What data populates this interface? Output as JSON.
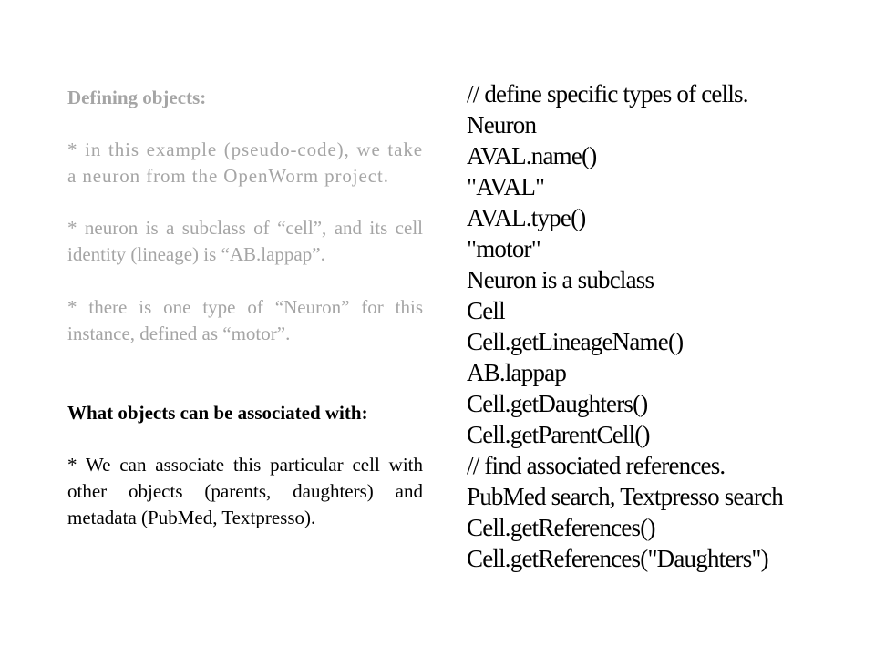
{
  "left": {
    "section1_heading": "Defining objects:",
    "bullet1": "* in this example (pseudo-code), we take a neuron from the OpenWorm project.",
    "bullet2": "* neuron is a subclass of “cell”, and its cell identity (lineage) is “AB.lappap”.",
    "bullet3": "* there is one type of “Neuron” for this instance, defined as “motor”.",
    "section2_heading": "What objects can be associated with:",
    "bullet4": "* We can associate this particular cell with other objects (parents, daughters) and metadata (PubMed, Textpresso)."
  },
  "code_lines": [
    "// define specific types of cells.",
    "Neuron",
    "AVAL.name()",
    "\"AVAL\"",
    "AVAL.type()",
    "\"motor\"",
    "Neuron is a subclass",
    "Cell",
    "Cell.getLineageName()",
    "AB.lappap",
    "Cell.getDaughters()",
    "Cell.getParentCell()",
    "// find associated references.",
    "PubMed search, Textpresso search",
    "Cell.getReferences()",
    "Cell.getReferences(\"Daughters\")"
  ],
  "colors": {
    "muted_text": "#a5a5a5",
    "dark_text": "#000000",
    "background": "#ffffff"
  }
}
